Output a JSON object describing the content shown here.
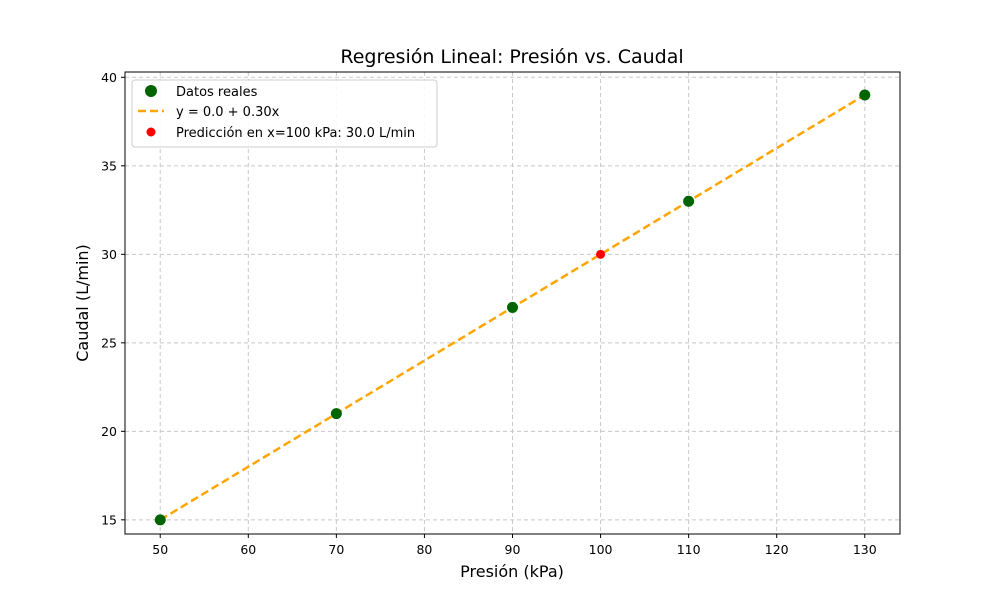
{
  "chart_data": {
    "type": "scatter",
    "title": "Regresión Lineal: Presión vs. Caudal",
    "xlabel": "Presión (kPa)",
    "ylabel": "Caudal (L/min)",
    "xlim": [
      46,
      134
    ],
    "ylim": [
      14.2,
      40.3
    ],
    "xticks": [
      50,
      60,
      70,
      80,
      90,
      100,
      110,
      120,
      130
    ],
    "yticks": [
      15,
      20,
      25,
      30,
      35,
      40
    ],
    "grid": true,
    "legend_position": "top-left",
    "series": [
      {
        "name": "Datos reales",
        "kind": "scatter",
        "color": "#006400",
        "points": [
          [
            50,
            15
          ],
          [
            70,
            21
          ],
          [
            90,
            27
          ],
          [
            110,
            33
          ],
          [
            130,
            39
          ]
        ]
      },
      {
        "name": "y = 0.0 + 0.30x",
        "kind": "line",
        "style": "dashed",
        "color": "#FFA500",
        "intercept": 0.0,
        "slope": 0.3,
        "x_range": [
          50,
          130
        ]
      },
      {
        "name": "Predicción en x=100 kPa: 30.0 L/min",
        "kind": "scatter",
        "color": "#FF0000",
        "points": [
          [
            100,
            30
          ]
        ]
      }
    ]
  }
}
